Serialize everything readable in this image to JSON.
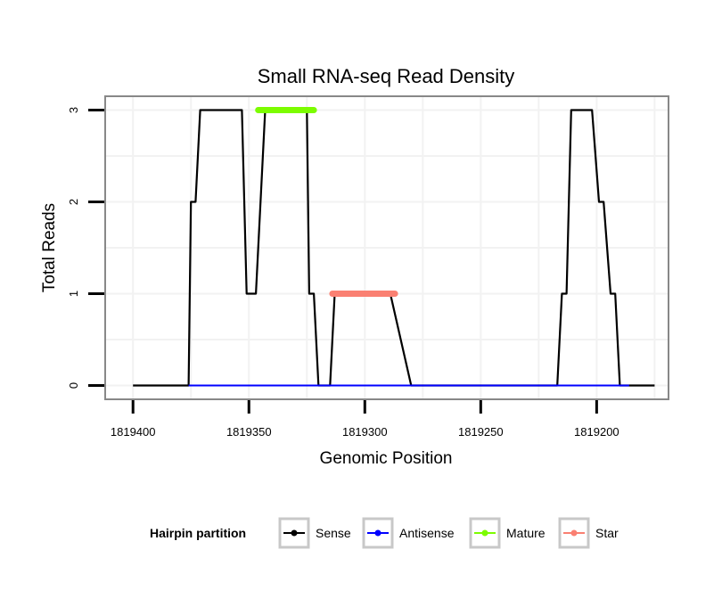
{
  "chart_data": {
    "type": "line",
    "title": "Small RNA-seq Read Density",
    "xlabel": "Genomic Position",
    "ylabel": "Total Reads",
    "x_reversed": true,
    "xlim": [
      1819412,
      1819169
    ],
    "ylim": [
      -0.15,
      3.15
    ],
    "xticks": [
      1819400,
      1819350,
      1819300,
      1819250,
      1819200
    ],
    "xtick_labels": [
      "1819400",
      "1819350",
      "1819300",
      "1819250",
      "1819200"
    ],
    "yticks": [
      0,
      1,
      2,
      3
    ],
    "ytick_labels": [
      "0",
      "1",
      "2",
      "3"
    ],
    "grid": true,
    "legend": {
      "title": "Hairpin partition",
      "position": "bottom",
      "entries": [
        {
          "name": "Sense",
          "color": "#000000"
        },
        {
          "name": "Antisense",
          "color": "#0000ff"
        },
        {
          "name": "Mature",
          "color": "#7cfc00"
        },
        {
          "name": "Star",
          "color": "#fa8072"
        }
      ]
    },
    "series": [
      {
        "name": "Sense",
        "color": "#000000",
        "x": [
          1819400,
          1819388,
          1819376,
          1819375,
          1819373,
          1819371,
          1819362,
          1819357,
          1819353,
          1819351,
          1819349,
          1819347,
          1819343,
          1819340,
          1819330,
          1819325,
          1819324,
          1819322,
          1819320,
          1819319,
          1819315,
          1819313,
          1819310,
          1819300,
          1819289,
          1819280,
          1819270,
          1819260,
          1819250,
          1819240,
          1819225,
          1819217,
          1819215,
          1819213,
          1819211,
          1819209,
          1819202,
          1819199,
          1819197,
          1819194,
          1819192,
          1819190,
          1819188,
          1819175
        ],
        "values": [
          0,
          0,
          0,
          2,
          2,
          3,
          3,
          3,
          3,
          1,
          1,
          1,
          3,
          3,
          3,
          3,
          1,
          1,
          0,
          0,
          0,
          1,
          1,
          1,
          1,
          0,
          0,
          0,
          0,
          0,
          0,
          0,
          1,
          1,
          3,
          3,
          3,
          2,
          2,
          1,
          1,
          0,
          0,
          0
        ]
      },
      {
        "name": "Antisense",
        "color": "#0000ff",
        "x": [
          1819376,
          1819186
        ],
        "values": [
          0,
          0
        ]
      },
      {
        "name": "Mature",
        "color": "#7cfc00",
        "x": [
          1819346,
          1819322
        ],
        "values": [
          3,
          3
        ]
      },
      {
        "name": "Star",
        "color": "#fa8072",
        "x": [
          1819314,
          1819287
        ],
        "values": [
          1,
          1
        ]
      }
    ]
  }
}
